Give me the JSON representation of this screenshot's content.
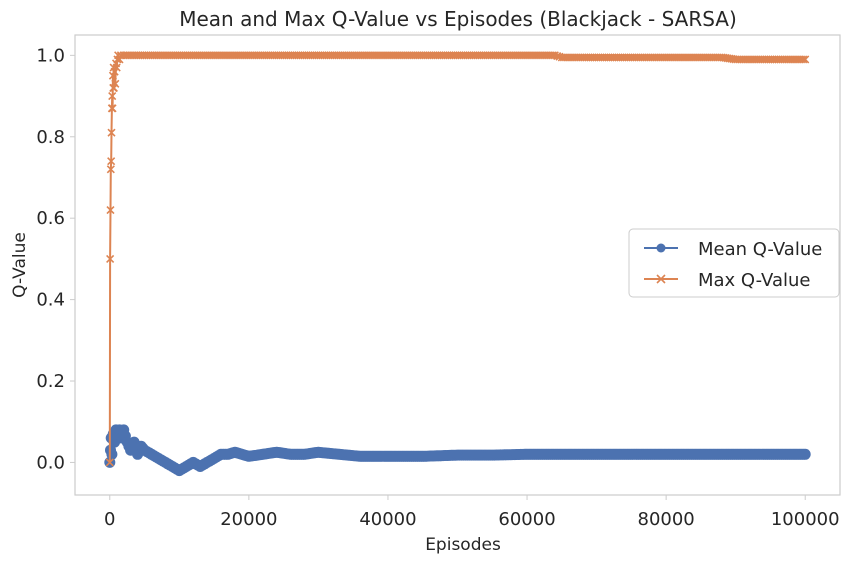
{
  "chart_data": {
    "type": "line",
    "title": "Mean and Max Q-Value vs Episodes (Blackjack - SARSA)",
    "xlabel": "Episodes",
    "ylabel": "Q-Value",
    "xlim": [
      -5000,
      105000
    ],
    "ylim": [
      -0.08,
      1.05
    ],
    "x_ticks": [
      0,
      20000,
      40000,
      60000,
      80000,
      100000
    ],
    "x_tick_labels": [
      "0",
      "20000",
      "40000",
      "60000",
      "80000",
      "100000"
    ],
    "y_ticks": [
      0.0,
      0.2,
      0.4,
      0.6,
      0.8,
      1.0
    ],
    "y_tick_labels": [
      "0.0",
      "0.2",
      "0.4",
      "0.6",
      "0.8",
      "1.0"
    ],
    "grid": false,
    "legend_position": "center-right",
    "series": [
      {
        "name": "Mean Q-Value",
        "color": "#4c72b0",
        "marker": "circle",
        "x": [
          0,
          100,
          200,
          300,
          500,
          700,
          900,
          1100,
          1400,
          1700,
          2000,
          2500,
          3000,
          3500,
          4000,
          4500,
          5000,
          6000,
          7000,
          8000,
          9000,
          10000,
          11000,
          12000,
          13000,
          14000,
          15000,
          16000,
          17000,
          18000,
          20000,
          22000,
          24000,
          26000,
          28000,
          30000,
          33000,
          36000,
          40000,
          45000,
          50000,
          55000,
          60000,
          65000,
          70000,
          75000,
          80000,
          85000,
          90000,
          95000,
          100000
        ],
        "y": [
          0.0,
          0.03,
          0.06,
          0.02,
          0.07,
          0.05,
          0.08,
          0.07,
          0.08,
          0.06,
          0.08,
          0.05,
          0.03,
          0.05,
          0.02,
          0.04,
          0.03,
          0.02,
          0.01,
          0.0,
          -0.01,
          -0.02,
          -0.01,
          0.0,
          -0.01,
          0.0,
          0.01,
          0.02,
          0.02,
          0.025,
          0.015,
          0.02,
          0.025,
          0.02,
          0.02,
          0.025,
          0.02,
          0.015,
          0.015,
          0.015,
          0.018,
          0.018,
          0.02,
          0.02,
          0.02,
          0.02,
          0.02,
          0.02,
          0.02,
          0.02,
          0.02
        ]
      },
      {
        "name": "Max Q-Value",
        "color": "#dd8452",
        "marker": "x",
        "x": [
          0,
          50,
          100,
          150,
          200,
          250,
          300,
          350,
          400,
          450,
          500,
          550,
          600,
          700,
          800,
          900,
          1000,
          1100,
          1200,
          1400,
          1600,
          2000,
          5000,
          10000,
          20000,
          40000,
          60000,
          64000,
          65000,
          70000,
          80000,
          88000,
          90000,
          95000,
          100000
        ],
        "y": [
          0.0,
          0.5,
          0.62,
          0.72,
          0.74,
          0.81,
          0.87,
          0.9,
          0.87,
          0.95,
          0.92,
          0.97,
          0.92,
          0.96,
          0.93,
          0.98,
          0.97,
          0.99,
          1.0,
          0.99,
          1.0,
          1.0,
          1.0,
          1.0,
          1.0,
          1.0,
          1.0,
          1.0,
          0.995,
          0.995,
          0.995,
          0.995,
          0.99,
          0.99,
          0.99
        ]
      }
    ]
  }
}
